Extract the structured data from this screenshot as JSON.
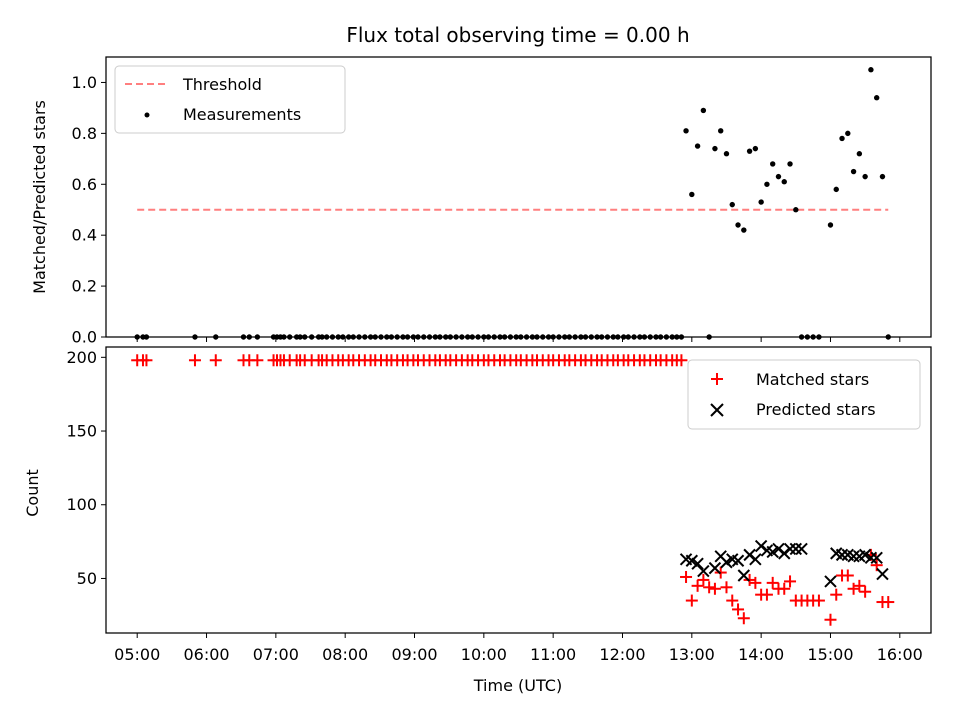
{
  "figure": {
    "title": "Flux total observing time = 0.00 h"
  },
  "chart_data": [
    {
      "type": "scatter",
      "title": "Flux total observing time = 0.00 h",
      "xlabel": "",
      "ylabel": "Matched/Predicted stars",
      "xlim": [
        "04:33",
        "16:27"
      ],
      "ylim": [
        0,
        1.1
      ],
      "yticks": [
        0.0,
        0.2,
        0.4,
        0.6,
        0.8,
        1.0
      ],
      "ytick_labels": [
        "0.0",
        "0.2",
        "0.4",
        "0.6",
        "0.8",
        "1.0"
      ],
      "xticks": [
        "05:00",
        "06:00",
        "07:00",
        "08:00",
        "09:00",
        "10:00",
        "11:00",
        "12:00",
        "13:00",
        "14:00",
        "15:00",
        "16:00"
      ],
      "grid": false,
      "legend_position": "upper left",
      "colors": {
        "threshold": "#ff7f7f",
        "measurements": "#000000"
      },
      "series": [
        {
          "name": "Threshold",
          "style": "dashed-line",
          "x": [
            "05:00",
            "15:50"
          ],
          "y": [
            0.5,
            0.5
          ]
        },
        {
          "name": "Measurements",
          "style": "dots",
          "x": [
            "05:00",
            "05:05",
            "05:08",
            "05:50",
            "06:08",
            "06:32",
            "06:37",
            "06:44",
            "06:58",
            "07:01",
            "07:04",
            "07:07",
            "07:12",
            "07:18",
            "07:21",
            "07:25",
            "07:31",
            "07:37",
            "07:40",
            "07:44",
            "07:49",
            "07:54",
            "07:58",
            "08:03",
            "08:07",
            "08:12",
            "08:17",
            "08:22",
            "08:26",
            "08:31",
            "08:36",
            "08:40",
            "08:45",
            "08:50",
            "08:54",
            "08:59",
            "09:03",
            "09:08",
            "09:13",
            "09:18",
            "09:22",
            "09:27",
            "09:31",
            "09:36",
            "09:41",
            "09:46",
            "09:50",
            "09:55",
            "10:00",
            "10:04",
            "10:09",
            "10:14",
            "10:18",
            "10:23",
            "10:28",
            "10:32",
            "10:37",
            "10:42",
            "10:46",
            "10:51",
            "10:56",
            "11:00",
            "11:05",
            "11:10",
            "11:14",
            "11:19",
            "11:24",
            "11:28",
            "11:33",
            "11:38",
            "11:42",
            "11:47",
            "11:52",
            "11:56",
            "12:01",
            "12:05",
            "12:10",
            "12:15",
            "12:19",
            "12:24",
            "12:29",
            "12:33",
            "12:38",
            "12:43",
            "12:47",
            "12:51",
            "12:55",
            "13:00",
            "13:05",
            "13:10",
            "13:15",
            "13:20",
            "13:25",
            "13:30",
            "13:35",
            "13:40",
            "13:45",
            "13:50",
            "13:55",
            "14:00",
            "14:05",
            "14:10",
            "14:15",
            "14:20",
            "14:25",
            "14:30",
            "14:35",
            "14:40",
            "14:45",
            "14:50",
            "15:00",
            "15:05",
            "15:10",
            "15:15",
            "15:20",
            "15:25",
            "15:30",
            "15:35",
            "15:40",
            "15:45",
            "15:50"
          ],
          "y": [
            0,
            0,
            0,
            0,
            0,
            0,
            0,
            0,
            0,
            0,
            0,
            0,
            0,
            0,
            0,
            0,
            0,
            0,
            0,
            0,
            0,
            0,
            0,
            0,
            0,
            0,
            0,
            0,
            0,
            0,
            0,
            0,
            0,
            0,
            0,
            0,
            0,
            0,
            0,
            0,
            0,
            0,
            0,
            0,
            0,
            0,
            0,
            0,
            0,
            0,
            0,
            0,
            0,
            0,
            0,
            0,
            0,
            0,
            0,
            0,
            0,
            0,
            0,
            0,
            0,
            0,
            0,
            0,
            0,
            0,
            0,
            0,
            0,
            0,
            0,
            0,
            0,
            0,
            0,
            0,
            0,
            0,
            0,
            0,
            0,
            0,
            0.81,
            0.56,
            0.75,
            0.89,
            0,
            0.74,
            0.81,
            0.72,
            0.52,
            0.44,
            0.42,
            0.73,
            0.74,
            0.53,
            0.6,
            0.68,
            0.63,
            0.61,
            0.68,
            0.5,
            0,
            0,
            0,
            0,
            0.44,
            0.58,
            0.78,
            0.8,
            0.65,
            0.72,
            0.63,
            1.05,
            0.94,
            0.63,
            0
          ]
        }
      ]
    },
    {
      "type": "scatter",
      "title": "",
      "xlabel": "Time (UTC)",
      "ylabel": "Count",
      "xlim": [
        "04:33",
        "16:27"
      ],
      "ylim": [
        13,
        207
      ],
      "yticks": [
        50,
        100,
        150,
        200
      ],
      "ytick_labels": [
        "50",
        "100",
        "150",
        "200"
      ],
      "xticks": [
        "05:00",
        "06:00",
        "07:00",
        "08:00",
        "09:00",
        "10:00",
        "11:00",
        "12:00",
        "13:00",
        "14:00",
        "15:00",
        "16:00"
      ],
      "xtick_labels": [
        "05:00",
        "06:00",
        "07:00",
        "08:00",
        "09:00",
        "10:00",
        "11:00",
        "12:00",
        "13:00",
        "14:00",
        "15:00",
        "16:00"
      ],
      "grid": false,
      "legend_position": "upper right",
      "colors": {
        "matched": "#ff0000",
        "predicted": "#000000"
      },
      "series": [
        {
          "name": "Matched stars",
          "marker": "+",
          "x": [
            "05:00",
            "05:05",
            "05:08",
            "05:50",
            "06:08",
            "06:32",
            "06:37",
            "06:44",
            "06:58",
            "07:01",
            "07:04",
            "07:07",
            "07:12",
            "07:18",
            "07:21",
            "07:25",
            "07:31",
            "07:37",
            "07:40",
            "07:44",
            "07:49",
            "07:54",
            "07:58",
            "08:03",
            "08:07",
            "08:12",
            "08:17",
            "08:22",
            "08:26",
            "08:31",
            "08:36",
            "08:40",
            "08:45",
            "08:50",
            "08:54",
            "08:59",
            "09:03",
            "09:08",
            "09:13",
            "09:18",
            "09:22",
            "09:27",
            "09:31",
            "09:36",
            "09:41",
            "09:46",
            "09:50",
            "09:55",
            "10:00",
            "10:04",
            "10:09",
            "10:14",
            "10:18",
            "10:23",
            "10:28",
            "10:32",
            "10:37",
            "10:42",
            "10:46",
            "10:51",
            "10:56",
            "11:00",
            "11:05",
            "11:10",
            "11:14",
            "11:19",
            "11:24",
            "11:28",
            "11:33",
            "11:38",
            "11:42",
            "11:47",
            "11:52",
            "11:56",
            "12:01",
            "12:05",
            "12:10",
            "12:15",
            "12:19",
            "12:24",
            "12:29",
            "12:33",
            "12:38",
            "12:43",
            "12:47",
            "12:51",
            "12:55",
            "13:00",
            "13:05",
            "13:10",
            "13:15",
            "13:20",
            "13:25",
            "13:30",
            "13:35",
            "13:40",
            "13:45",
            "13:50",
            "13:55",
            "14:00",
            "14:05",
            "14:10",
            "14:15",
            "14:20",
            "14:25",
            "14:30",
            "14:35",
            "14:40",
            "14:45",
            "14:50",
            "15:00",
            "15:05",
            "15:10",
            "15:15",
            "15:20",
            "15:25",
            "15:30",
            "15:35",
            "15:40",
            "15:45",
            "15:50"
          ],
          "y": [
            198,
            198,
            198,
            198,
            198,
            198,
            198,
            198,
            198,
            198,
            198,
            198,
            198,
            198,
            198,
            198,
            198,
            198,
            198,
            198,
            198,
            198,
            198,
            198,
            198,
            198,
            198,
            198,
            198,
            198,
            198,
            198,
            198,
            198,
            198,
            198,
            198,
            198,
            198,
            198,
            198,
            198,
            198,
            198,
            198,
            198,
            198,
            198,
            198,
            198,
            198,
            198,
            198,
            198,
            198,
            198,
            198,
            198,
            198,
            198,
            198,
            198,
            198,
            198,
            198,
            198,
            198,
            198,
            198,
            198,
            198,
            198,
            198,
            198,
            198,
            198,
            198,
            198,
            198,
            198,
            198,
            198,
            198,
            198,
            198,
            198,
            51,
            35,
            45,
            49,
            44,
            43,
            54,
            44,
            35,
            29,
            23,
            49,
            47,
            39,
            39,
            47,
            43,
            43,
            48,
            35,
            35,
            35,
            35,
            35,
            22,
            39,
            52,
            52,
            43,
            45,
            41,
            66,
            59,
            34,
            34
          ]
        },
        {
          "name": "Predicted stars",
          "marker": "x",
          "x": [
            "12:55",
            "13:00",
            "13:05",
            "13:10",
            "13:20",
            "13:25",
            "13:30",
            "13:35",
            "13:40",
            "13:45",
            "13:50",
            "13:55",
            "14:00",
            "14:05",
            "14:10",
            "14:15",
            "14:20",
            "14:25",
            "14:30",
            "14:35",
            "15:00",
            "15:05",
            "15:10",
            "15:15",
            "15:20",
            "15:25",
            "15:30",
            "15:35",
            "15:40",
            "15:45"
          ],
          "y": [
            63,
            62,
            60,
            55,
            57,
            65,
            61,
            63,
            62,
            52,
            66,
            63,
            72,
            69,
            68,
            70,
            67,
            70,
            70,
            70,
            48,
            67,
            66,
            66,
            65,
            65,
            66,
            64,
            64,
            53
          ]
        }
      ]
    }
  ]
}
